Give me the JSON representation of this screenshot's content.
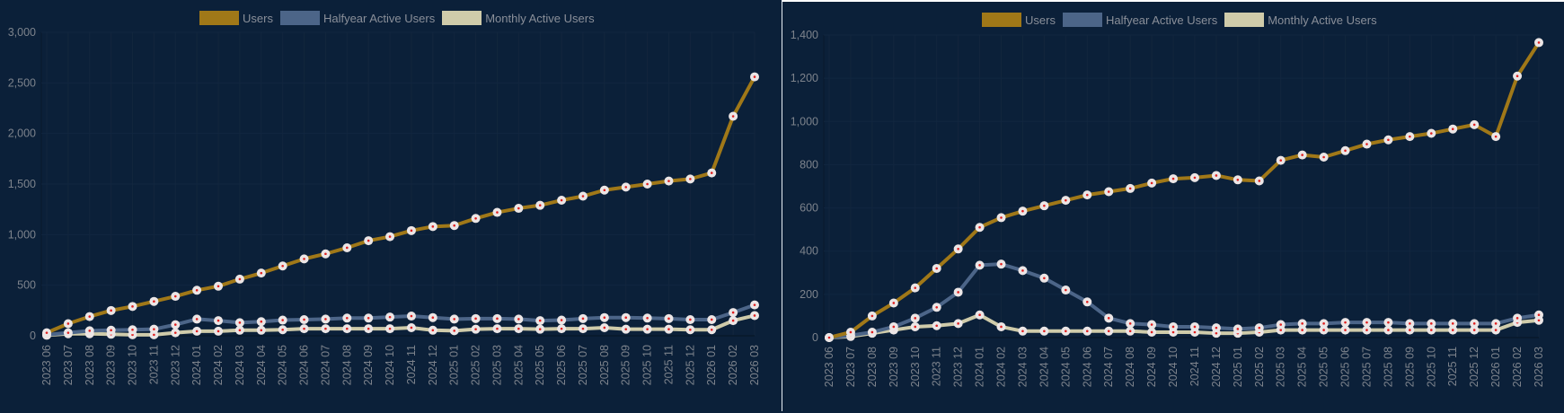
{
  "legend": [
    "Users",
    "Halfyear Active Users",
    "Monthly Active Users"
  ],
  "colors": {
    "Users": "#a07818",
    "Halfyear Active Users": "#4c6588",
    "Monthly Active Users": "#cfcbaa",
    "point_fill": "#ece6e6",
    "point_center": "#e02020"
  },
  "chart_data": [
    {
      "type": "line",
      "title": "",
      "xlabel": "",
      "ylabel": "",
      "ylim": [
        0,
        3000
      ],
      "yticks": [
        "0",
        "500",
        "1,000",
        "1,500",
        "2,000",
        "2,500",
        "3,000"
      ],
      "ytick_values": [
        0,
        500,
        1000,
        1500,
        2000,
        2500,
        3000
      ],
      "legend_position": "top-center",
      "grid": true,
      "categories": [
        "2023 06",
        "2023 07",
        "2023 08",
        "2023 09",
        "2023 10",
        "2023 11",
        "2023 12",
        "2024 01",
        "2024 02",
        "2024 03",
        "2024 04",
        "2024 05",
        "2024 06",
        "2024 07",
        "2024 08",
        "2024 09",
        "2024 10",
        "2024 11",
        "2024 12",
        "2025 01",
        "2025 02",
        "2025 03",
        "2025 04",
        "2025 05",
        "2025 06",
        "2025 07",
        "2025 08",
        "2025 09",
        "2025 10",
        "2025 11",
        "2025 12",
        "2026 01",
        "2026 02",
        "2026 03"
      ],
      "series": [
        {
          "name": "Users",
          "values": [
            30,
            120,
            190,
            250,
            290,
            340,
            390,
            450,
            490,
            560,
            620,
            690,
            760,
            810,
            870,
            940,
            980,
            1040,
            1080,
            1090,
            1160,
            1220,
            1260,
            1290,
            1340,
            1380,
            1440,
            1470,
            1500,
            1530,
            1550,
            1610,
            2170,
            2560
          ]
        },
        {
          "name": "Halfyear Active Users",
          "values": [
            10,
            30,
            50,
            55,
            60,
            65,
            110,
            165,
            150,
            130,
            140,
            155,
            160,
            165,
            175,
            175,
            185,
            195,
            180,
            165,
            170,
            170,
            165,
            150,
            155,
            170,
            180,
            180,
            175,
            170,
            160,
            160,
            230,
            305
          ]
        },
        {
          "name": "Monthly Active Users",
          "values": [
            5,
            20,
            20,
            15,
            10,
            10,
            30,
            45,
            45,
            55,
            55,
            60,
            70,
            70,
            70,
            70,
            70,
            80,
            55,
            50,
            65,
            70,
            70,
            65,
            70,
            70,
            80,
            65,
            65,
            65,
            60,
            60,
            150,
            200
          ]
        }
      ]
    },
    {
      "type": "line",
      "title": "",
      "xlabel": "",
      "ylabel": "",
      "ylim": [
        0,
        1400
      ],
      "yticks": [
        "0",
        "200",
        "400",
        "600",
        "800",
        "1,000",
        "1,200",
        "1,400"
      ],
      "ytick_values": [
        0,
        200,
        400,
        600,
        800,
        1000,
        1200,
        1400
      ],
      "legend_position": "top-center",
      "grid": true,
      "categories": [
        "2023 06",
        "2023 07",
        "2023 08",
        "2023 09",
        "2023 10",
        "2023 11",
        "2023 12",
        "2024 01",
        "2024 02",
        "2024 03",
        "2024 04",
        "2024 05",
        "2024 06",
        "2024 07",
        "2024 08",
        "2024 09",
        "2024 10",
        "2024 11",
        "2024 12",
        "2025 01",
        "2025 02",
        "2025 03",
        "2025 04",
        "2025 05",
        "2025 06",
        "2025 07",
        "2025 08",
        "2025 09",
        "2025 10",
        "2025 11",
        "2025 12",
        "2026 01",
        "2026 02",
        "2026 03"
      ],
      "series": [
        {
          "name": "Users",
          "values": [
            0,
            25,
            100,
            160,
            230,
            320,
            410,
            510,
            555,
            585,
            610,
            635,
            660,
            675,
            690,
            715,
            735,
            740,
            750,
            730,
            725,
            820,
            845,
            835,
            865,
            895,
            915,
            930,
            945,
            965,
            985,
            930,
            1210,
            1365
          ]
        },
        {
          "name": "Halfyear Active Users",
          "values": [
            0,
            10,
            25,
            50,
            90,
            140,
            210,
            335,
            340,
            310,
            275,
            220,
            165,
            90,
            65,
            60,
            50,
            50,
            45,
            40,
            45,
            60,
            65,
            65,
            70,
            70,
            70,
            65,
            65,
            65,
            65,
            65,
            90,
            105
          ]
        },
        {
          "name": "Monthly Active Users",
          "values": [
            0,
            5,
            20,
            35,
            50,
            55,
            65,
            105,
            50,
            30,
            30,
            30,
            30,
            30,
            30,
            25,
            25,
            25,
            20,
            20,
            25,
            35,
            35,
            35,
            35,
            35,
            35,
            35,
            35,
            35,
            35,
            35,
            70,
            80
          ]
        }
      ]
    }
  ]
}
